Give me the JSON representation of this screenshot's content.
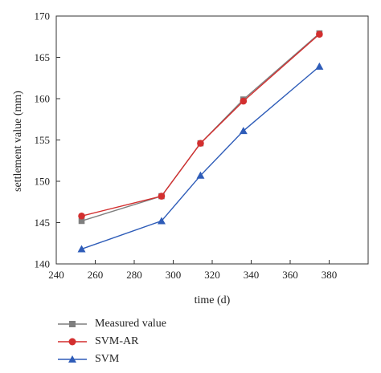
{
  "chart_data": {
    "type": "line",
    "xlabel": "time (d)",
    "ylabel": "settlement value (mm)",
    "xlim": [
      240,
      400
    ],
    "ylim": [
      140,
      170
    ],
    "xticks": [
      240,
      260,
      280,
      300,
      320,
      340,
      360,
      380
    ],
    "yticks": [
      140,
      145,
      150,
      155,
      160,
      165,
      170
    ],
    "grid": false,
    "legend_position": "bottom",
    "series": [
      {
        "name": "Measured value",
        "marker": "square",
        "color": "#7f7f7f",
        "x": [
          253,
          294,
          314,
          336,
          375
        ],
        "y": [
          145.2,
          148.2,
          154.6,
          159.9,
          167.9
        ]
      },
      {
        "name": "SVM-AR",
        "marker": "circle",
        "color": "#d32f2f",
        "x": [
          253,
          294,
          314,
          336,
          375
        ],
        "y": [
          145.8,
          148.2,
          154.6,
          159.7,
          167.8
        ]
      },
      {
        "name": "SVM",
        "marker": "triangle",
        "color": "#2e5cb8",
        "x": [
          253,
          294,
          314,
          336,
          375
        ],
        "y": [
          141.8,
          145.2,
          150.7,
          156.1,
          163.9
        ]
      }
    ]
  }
}
